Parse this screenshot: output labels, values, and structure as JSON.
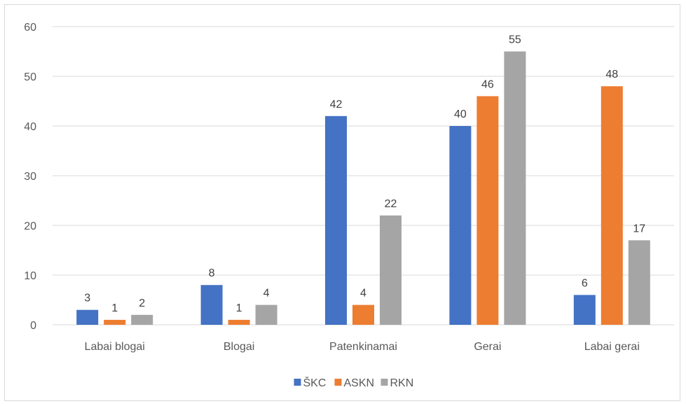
{
  "chart_data": {
    "type": "bar",
    "categories": [
      "Labai blogai",
      "Blogai",
      "Patenkinamai",
      "Gerai",
      "Labai gerai"
    ],
    "series": [
      {
        "name": "ŠKC",
        "color": "#4472C4",
        "values": [
          3,
          8,
          42,
          40,
          6
        ]
      },
      {
        "name": "ASKN",
        "color": "#ED7D31",
        "values": [
          1,
          1,
          4,
          46,
          48
        ]
      },
      {
        "name": "RKN",
        "color": "#A5A5A5",
        "values": [
          2,
          4,
          22,
          55,
          17
        ]
      }
    ],
    "title": "",
    "xlabel": "",
    "ylabel": "",
    "ylim": [
      0,
      60
    ],
    "yticks": [
      0,
      10,
      20,
      30,
      40,
      50,
      60
    ],
    "grid": true,
    "data_labels": true,
    "legend_position": "bottom"
  }
}
